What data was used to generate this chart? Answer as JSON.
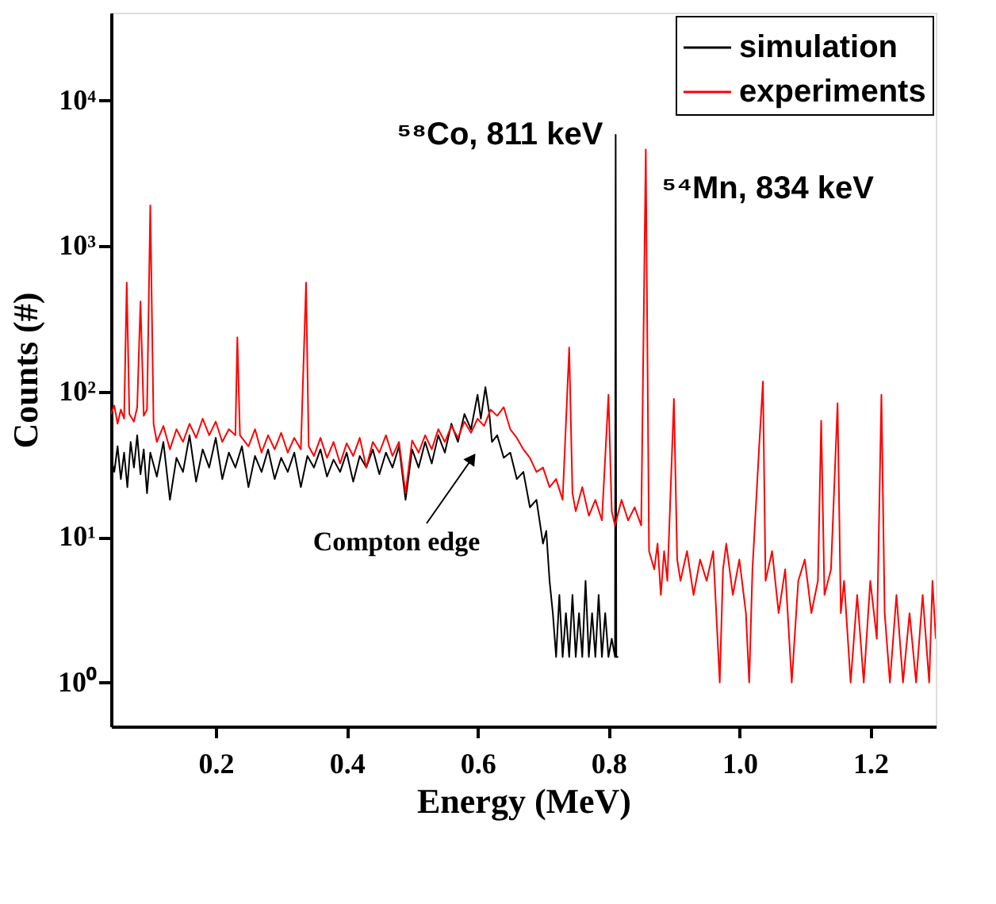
{
  "chart_data": {
    "type": "line",
    "xlabel": "Energy (MeV)",
    "ylabel": "Counts (#)",
    "log": "y",
    "grid": false,
    "legend": "top right",
    "line_style": "solid",
    "marker": "none",
    "xlim": [
      0.04,
      1.3
    ],
    "xticks": [
      0.2,
      0.4,
      0.6,
      0.8,
      {
        "value": 1,
        "label": "1.0"
      },
      1.2
    ],
    "ylim": [
      0.5,
      40000
    ],
    "yticks": [
      {
        "value": 1,
        "label": "10⁰"
      },
      {
        "value": 10,
        "label": "10¹"
      },
      {
        "value": 100,
        "label": "10²"
      },
      {
        "value": 1000,
        "label": "10³"
      },
      {
        "value": 10000,
        "label": "10⁴"
      }
    ],
    "annotations": [
      {
        "text": "⁵⁸Co, 811 keV",
        "x": 0.811,
        "y": 5800
      },
      {
        "text": "⁵⁴Mn, 834 keV",
        "x": 0.857,
        "y": 4600
      },
      "Compton edge"
    ],
    "series": [
      {
        "name": "simulation",
        "color": "#000000",
        "x": [
          0.04,
          0.045,
          0.05,
          0.055,
          0.06,
          0.065,
          0.07,
          0.075,
          0.08,
          0.085,
          0.09,
          0.095,
          0.1,
          0.11,
          0.12,
          0.13,
          0.14,
          0.15,
          0.16,
          0.17,
          0.18,
          0.19,
          0.2,
          0.21,
          0.22,
          0.23,
          0.24,
          0.25,
          0.26,
          0.27,
          0.28,
          0.29,
          0.3,
          0.31,
          0.32,
          0.33,
          0.34,
          0.35,
          0.36,
          0.37,
          0.38,
          0.39,
          0.4,
          0.41,
          0.42,
          0.43,
          0.44,
          0.45,
          0.46,
          0.47,
          0.48,
          0.49,
          0.5,
          0.51,
          0.52,
          0.53,
          0.54,
          0.55,
          0.56,
          0.57,
          0.58,
          0.59,
          0.6,
          0.605,
          0.612,
          0.618,
          0.622,
          0.63,
          0.64,
          0.65,
          0.66,
          0.67,
          0.68,
          0.69,
          0.7,
          0.705,
          0.71,
          0.715,
          0.72,
          0.725,
          0.73,
          0.735,
          0.74,
          0.745,
          0.75,
          0.755,
          0.76,
          0.765,
          0.77,
          0.775,
          0.78,
          0.785,
          0.79,
          0.795,
          0.8,
          0.805,
          0.81,
          0.811,
          0.812,
          0.815
        ],
        "values": [
          35,
          28,
          42,
          25,
          38,
          22,
          45,
          30,
          50,
          27,
          40,
          20,
          38,
          26,
          45,
          18,
          35,
          28,
          50,
          24,
          40,
          30,
          48,
          25,
          38,
          30,
          42,
          22,
          36,
          28,
          40,
          25,
          35,
          28,
          38,
          22,
          36,
          30,
          40,
          26,
          34,
          28,
          38,
          24,
          36,
          30,
          40,
          27,
          38,
          30,
          42,
          18,
          40,
          30,
          45,
          32,
          50,
          38,
          60,
          45,
          70,
          55,
          95,
          65,
          107,
          70,
          45,
          50,
          35,
          38,
          25,
          28,
          16,
          18,
          9,
          11,
          5,
          3,
          1.5,
          4,
          1.5,
          3,
          1.5,
          4,
          1.5,
          3,
          1.5,
          5,
          1.5,
          3,
          1.5,
          4,
          1.5,
          3,
          1.5,
          2,
          1.5,
          5800,
          1.5,
          1.5
        ]
      },
      {
        "name": "experiments",
        "color": "#ff0000",
        "x": [
          0.04,
          0.045,
          0.05,
          0.055,
          0.06,
          0.064,
          0.068,
          0.075,
          0.08,
          0.085,
          0.09,
          0.095,
          0.1,
          0.105,
          0.11,
          0.12,
          0.13,
          0.14,
          0.15,
          0.16,
          0.17,
          0.18,
          0.19,
          0.2,
          0.21,
          0.22,
          0.23,
          0.233,
          0.237,
          0.25,
          0.26,
          0.27,
          0.28,
          0.29,
          0.3,
          0.31,
          0.32,
          0.33,
          0.338,
          0.342,
          0.35,
          0.36,
          0.37,
          0.38,
          0.39,
          0.4,
          0.41,
          0.42,
          0.43,
          0.44,
          0.45,
          0.46,
          0.47,
          0.48,
          0.49,
          0.5,
          0.51,
          0.52,
          0.53,
          0.54,
          0.55,
          0.56,
          0.57,
          0.58,
          0.59,
          0.6,
          0.61,
          0.62,
          0.63,
          0.64,
          0.65,
          0.66,
          0.67,
          0.68,
          0.69,
          0.7,
          0.71,
          0.72,
          0.73,
          0.74,
          0.745,
          0.75,
          0.76,
          0.77,
          0.78,
          0.79,
          0.8,
          0.805,
          0.81,
          0.82,
          0.83,
          0.84,
          0.85,
          0.857,
          0.862,
          0.87,
          0.875,
          0.88,
          0.885,
          0.89,
          0.9,
          0.905,
          0.91,
          0.92,
          0.93,
          0.94,
          0.95,
          0.96,
          0.97,
          0.975,
          0.98,
          0.99,
          1.0,
          1.01,
          1.015,
          1.02,
          1.03,
          1.036,
          1.04,
          1.05,
          1.06,
          1.07,
          1.08,
          1.09,
          1.1,
          1.11,
          1.12,
          1.125,
          1.13,
          1.14,
          1.15,
          1.155,
          1.16,
          1.17,
          1.18,
          1.19,
          1.2,
          1.21,
          1.217,
          1.222,
          1.23,
          1.24,
          1.25,
          1.26,
          1.27,
          1.28,
          1.29,
          1.295,
          1.3
        ],
        "values": [
          70,
          80,
          60,
          75,
          65,
          560,
          70,
          62,
          78,
          415,
          68,
          75,
          1900,
          60,
          45,
          58,
          40,
          55,
          45,
          60,
          48,
          65,
          50,
          62,
          45,
          55,
          50,
          235,
          50,
          42,
          55,
          38,
          50,
          40,
          52,
          38,
          48,
          40,
          560,
          42,
          36,
          48,
          35,
          45,
          32,
          44,
          36,
          48,
          30,
          45,
          38,
          50,
          36,
          45,
          20,
          46,
          38,
          50,
          40,
          55,
          45,
          58,
          48,
          62,
          52,
          65,
          58,
          75,
          68,
          78,
          55,
          48,
          40,
          35,
          28,
          30,
          22,
          25,
          18,
          200,
          20,
          15,
          22,
          14,
          18,
          13,
          95,
          15,
          12,
          18,
          13,
          16,
          12,
          4600,
          8,
          6,
          9,
          4,
          8,
          5,
          89,
          7,
          5,
          8,
          4,
          7,
          5,
          8,
          1,
          6,
          9,
          4,
          7,
          3,
          1,
          6,
          40,
          117,
          5,
          8,
          3,
          6,
          1,
          5,
          7,
          3,
          5,
          63,
          4,
          6,
          83,
          3,
          5,
          1,
          4,
          1,
          5,
          2,
          95,
          3,
          1,
          4,
          1,
          3,
          1,
          4,
          1,
          5,
          2
        ]
      }
    ]
  }
}
